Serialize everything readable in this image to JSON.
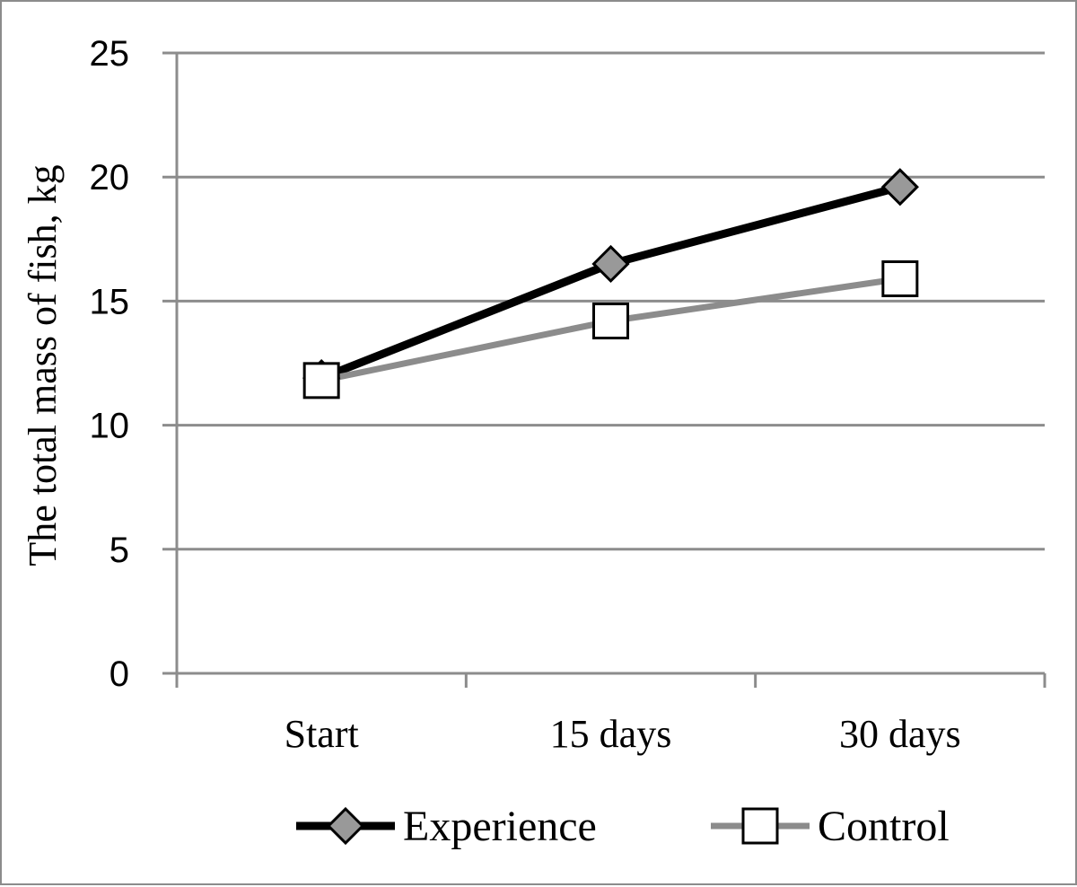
{
  "chart_data": {
    "type": "line",
    "title": "",
    "xlabel": "",
    "ylabel": "The total mass of fish, kg",
    "categories": [
      "Start",
      "15 days",
      "30 days"
    ],
    "ylim": [
      0,
      25
    ],
    "yticks": [
      0,
      5,
      10,
      15,
      20,
      25
    ],
    "grid": true,
    "legend_position": "bottom",
    "series": [
      {
        "name": "Experience",
        "values": [
          11.9,
          16.5,
          19.6
        ],
        "color": "#000000",
        "marker": "diamond",
        "marker_fill": "#999999"
      },
      {
        "name": "Control",
        "values": [
          11.8,
          14.2,
          15.9
        ],
        "color": "#8c8c8c",
        "marker": "square",
        "marker_fill": "#ffffff"
      }
    ]
  }
}
